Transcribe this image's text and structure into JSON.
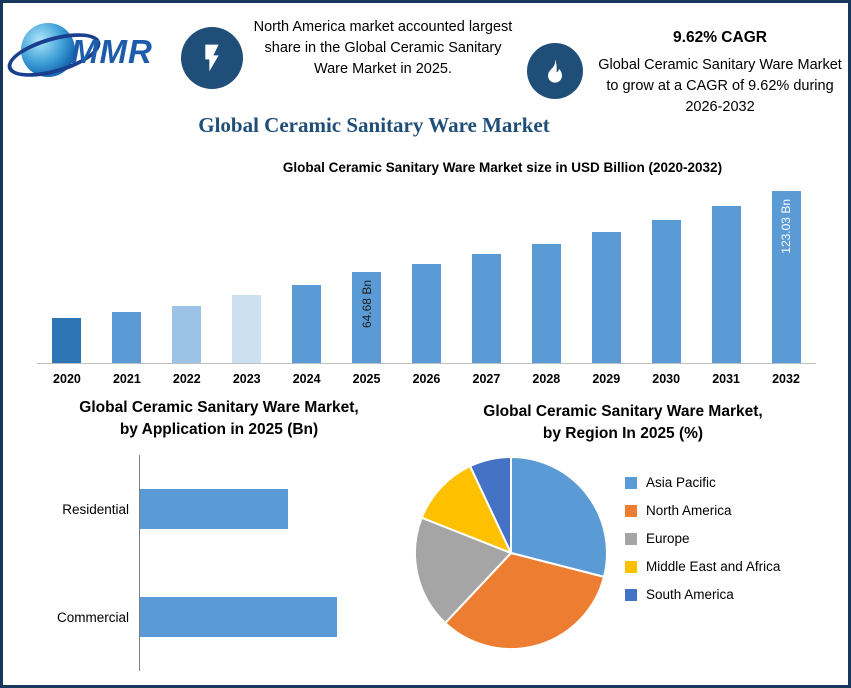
{
  "header": {
    "logo_text": "MMR",
    "fact1": "North America market accounted largest share in the Global Ceramic Sanitary Ware Market in 2025.",
    "fact2_title": "9.62% CAGR",
    "fact2_text": "Global Ceramic Sanitary Ware Market to grow at a CAGR of 9.62% during 2026-2032",
    "title": "Global Ceramic Sanitary Ware Market"
  },
  "chart_data": [
    {
      "type": "bar",
      "title": "Global Ceramic Sanitary Ware Market size in USD Billion (2020-2032)",
      "categories": [
        "2020",
        "2021",
        "2022",
        "2023",
        "2024",
        "2025",
        "2026",
        "2027",
        "2028",
        "2029",
        "2030",
        "2031",
        "2032"
      ],
      "values": [
        32,
        36.5,
        41,
        48.5,
        56,
        64.68,
        70.9,
        77.7,
        85.2,
        93.4,
        102.4,
        112.2,
        123.03
      ],
      "unit": "USD Billion",
      "ylim": [
        0,
        125
      ],
      "grid": false,
      "bar_colors": [
        "#2E75B6",
        "#5B9BD5",
        "#9CC2E5",
        "#CDE0F2",
        "#5B9BD5",
        "#5B9BD5",
        "#5B9BD5",
        "#5B9BD5",
        "#5B9BD5",
        "#5B9BD5",
        "#5B9BD5",
        "#5B9BD5",
        "#5B9BD5"
      ],
      "value_labels": [
        {
          "index": 5,
          "text": "64.68 Bn",
          "color": "#1a1a1a"
        },
        {
          "index": 12,
          "text": "123.03 Bn",
          "color": "#ffffff"
        }
      ]
    },
    {
      "type": "bar",
      "orientation": "horizontal",
      "title_line1": "Global Ceramic Sanitary Ware Market,",
      "title_line2": "by Application in 2025 (Bn)",
      "categories": [
        "Residential",
        "Commercial"
      ],
      "values": [
        27.7,
        37.0
      ],
      "xmax": 45,
      "bar_color": "#5B9BD5"
    },
    {
      "type": "pie",
      "title_line1": "Global Ceramic Sanitary Ware Market,",
      "title_line2": "by Region In 2025 (%)",
      "legend_position": "right",
      "slices": [
        {
          "label": "Asia Pacific",
          "value": 29,
          "color": "#5B9BD5"
        },
        {
          "label": "North America",
          "value": 33,
          "color": "#ED7D31"
        },
        {
          "label": "Europe",
          "value": 19,
          "color": "#A5A5A5"
        },
        {
          "label": "Middle East and Africa",
          "value": 12,
          "color": "#FFC000"
        },
        {
          "label": "South America",
          "value": 7,
          "color": "#4472C4"
        }
      ]
    }
  ]
}
